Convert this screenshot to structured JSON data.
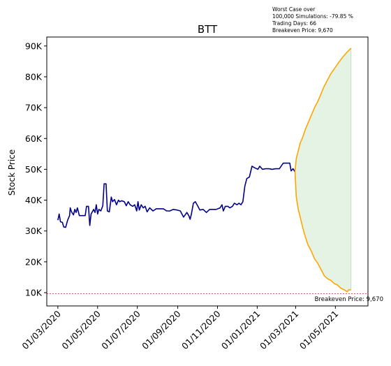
{
  "chart_data": {
    "type": "line",
    "title": "BTT",
    "xlabel": "",
    "ylabel": "Stock Price",
    "x_ticks": [
      "01/03/2020",
      "01/05/2020",
      "01/07/2020",
      "01/09/2020",
      "01/11/2020",
      "01/01/2021",
      "01/03/2021",
      "01/05/2021"
    ],
    "y_ticks": [
      "10K",
      "20K",
      "30K",
      "40K",
      "50K",
      "60K",
      "70K",
      "80K",
      "90K"
    ],
    "xlim": [
      "2020-02-13",
      "2021-06-20"
    ],
    "ylim": [
      5700,
      92900
    ],
    "grid": false,
    "annotation_lines": [
      "Worst Case over",
      "100,000 Simulations: -79.85 %",
      "Trading Days: 66",
      "Breakeven Price: 9,670"
    ],
    "breakeven": {
      "value": 9670,
      "label": "Breakeven Price: 9,670",
      "color": "#d62728"
    },
    "series": [
      {
        "color": "#00008b",
        "points": [
          [
            "2020-03-01",
            33500
          ],
          [
            "2020-03-03",
            35500
          ],
          [
            "2020-03-05",
            33000
          ],
          [
            "2020-03-08",
            32800
          ],
          [
            "2020-03-10",
            31300
          ],
          [
            "2020-03-13",
            31200
          ],
          [
            "2020-03-16",
            33500
          ],
          [
            "2020-03-19",
            35000
          ],
          [
            "2020-03-20",
            37500
          ],
          [
            "2020-03-22",
            36200
          ],
          [
            "2020-03-25",
            35200
          ],
          [
            "2020-03-27",
            37000
          ],
          [
            "2020-03-29",
            36000
          ],
          [
            "2020-03-31",
            37500
          ],
          [
            "2020-04-03",
            35000
          ],
          [
            "2020-04-08",
            35000
          ],
          [
            "2020-04-12",
            35000
          ],
          [
            "2020-04-14",
            38000
          ],
          [
            "2020-04-17",
            38000
          ],
          [
            "2020-04-19",
            31800
          ],
          [
            "2020-04-21",
            35500
          ],
          [
            "2020-04-25",
            37000
          ],
          [
            "2020-04-27",
            36000
          ],
          [
            "2020-04-29",
            38500
          ],
          [
            "2020-05-01",
            35500
          ],
          [
            "2020-05-03",
            37000
          ],
          [
            "2020-05-06",
            36500
          ],
          [
            "2020-05-09",
            38200
          ],
          [
            "2020-05-11",
            45300
          ],
          [
            "2020-05-14",
            45300
          ],
          [
            "2020-05-16",
            36500
          ],
          [
            "2020-05-19",
            36200
          ],
          [
            "2020-05-22",
            41000
          ],
          [
            "2020-05-24",
            39500
          ],
          [
            "2020-05-27",
            40200
          ],
          [
            "2020-05-30",
            38500
          ],
          [
            "2020-06-02",
            40000
          ],
          [
            "2020-06-04",
            39500
          ],
          [
            "2020-06-07",
            39800
          ],
          [
            "2020-06-11",
            39500
          ],
          [
            "2020-06-14",
            38200
          ],
          [
            "2020-06-17",
            39500
          ],
          [
            "2020-06-20",
            38500
          ],
          [
            "2020-06-24",
            38000
          ],
          [
            "2020-06-27",
            38500
          ],
          [
            "2020-06-30",
            36500
          ],
          [
            "2020-07-02",
            39500
          ],
          [
            "2020-07-04",
            36800
          ],
          [
            "2020-07-07",
            38500
          ],
          [
            "2020-07-10",
            37500
          ],
          [
            "2020-07-13",
            38000
          ],
          [
            "2020-07-16",
            36200
          ],
          [
            "2020-07-20",
            37500
          ],
          [
            "2020-07-25",
            36500
          ],
          [
            "2020-07-30",
            37200
          ],
          [
            "2020-08-05",
            37200
          ],
          [
            "2020-08-10",
            37200
          ],
          [
            "2020-08-15",
            36500
          ],
          [
            "2020-08-20",
            36500
          ],
          [
            "2020-08-25",
            37000
          ],
          [
            "2020-08-31",
            36800
          ],
          [
            "2020-09-05",
            36500
          ],
          [
            "2020-09-10",
            34500
          ],
          [
            "2020-09-15",
            36000
          ],
          [
            "2020-09-18",
            35000
          ],
          [
            "2020-09-20",
            33800
          ],
          [
            "2020-09-22",
            35500
          ],
          [
            "2020-09-25",
            39000
          ],
          [
            "2020-09-28",
            39500
          ],
          [
            "2020-10-02",
            38000
          ],
          [
            "2020-10-05",
            36800
          ],
          [
            "2020-10-10",
            37000
          ],
          [
            "2020-10-15",
            36000
          ],
          [
            "2020-10-20",
            37000
          ],
          [
            "2020-10-30",
            37000
          ],
          [
            "2020-11-05",
            37500
          ],
          [
            "2020-11-08",
            38500
          ],
          [
            "2020-11-10",
            36500
          ],
          [
            "2020-11-13",
            38000
          ],
          [
            "2020-11-17",
            38000
          ],
          [
            "2020-11-20",
            37500
          ],
          [
            "2020-11-24",
            38000
          ],
          [
            "2020-11-27",
            39000
          ],
          [
            "2020-12-01",
            38500
          ],
          [
            "2020-12-04",
            39000
          ],
          [
            "2020-12-07",
            38500
          ],
          [
            "2020-12-10",
            39500
          ],
          [
            "2020-12-13",
            44500
          ],
          [
            "2020-12-16",
            47000
          ],
          [
            "2020-12-20",
            47500
          ],
          [
            "2020-12-24",
            51000
          ],
          [
            "2020-12-28",
            50500
          ],
          [
            "2021-01-02",
            50000
          ],
          [
            "2021-01-05",
            51000
          ],
          [
            "2021-01-09",
            50000
          ],
          [
            "2021-01-14",
            50200
          ],
          [
            "2021-01-19",
            50200
          ],
          [
            "2021-01-24",
            50000
          ],
          [
            "2021-01-29",
            50200
          ],
          [
            "2021-02-04",
            50200
          ],
          [
            "2021-02-10",
            52000
          ],
          [
            "2021-02-16",
            52000
          ],
          [
            "2021-02-20",
            52000
          ],
          [
            "2021-02-22",
            49500
          ],
          [
            "2021-02-25",
            50200
          ],
          [
            "2021-02-28",
            49200
          ]
        ]
      },
      {
        "color": "#ffa500",
        "points": [
          [
            "2021-02-28",
            49200
          ],
          [
            "2021-03-02",
            53500
          ],
          [
            "2021-03-05",
            56000
          ],
          [
            "2021-03-08",
            58500
          ],
          [
            "2021-03-12",
            60500
          ],
          [
            "2021-03-16",
            63000
          ],
          [
            "2021-03-20",
            65000
          ],
          [
            "2021-03-25",
            67500
          ],
          [
            "2021-03-30",
            70000
          ],
          [
            "2021-04-04",
            72000
          ],
          [
            "2021-04-09",
            74500
          ],
          [
            "2021-04-14",
            77000
          ],
          [
            "2021-04-19",
            79000
          ],
          [
            "2021-04-24",
            81000
          ],
          [
            "2021-04-29",
            82500
          ],
          [
            "2021-05-04",
            84000
          ],
          [
            "2021-05-09",
            85500
          ],
          [
            "2021-05-14",
            86800
          ],
          [
            "2021-05-19",
            88000
          ],
          [
            "2021-05-25",
            89300
          ]
        ]
      },
      {
        "color": "#ffa500",
        "points": [
          [
            "2021-02-28",
            49200
          ],
          [
            "2021-03-02",
            41000
          ],
          [
            "2021-03-05",
            37000
          ],
          [
            "2021-03-08",
            34500
          ],
          [
            "2021-03-12",
            31000
          ],
          [
            "2021-03-16",
            28000
          ],
          [
            "2021-03-20",
            25500
          ],
          [
            "2021-03-25",
            23500
          ],
          [
            "2021-03-30",
            21000
          ],
          [
            "2021-04-04",
            19500
          ],
          [
            "2021-04-09",
            17500
          ],
          [
            "2021-04-14",
            15500
          ],
          [
            "2021-04-19",
            14500
          ],
          [
            "2021-04-24",
            14000
          ],
          [
            "2021-04-29",
            13000
          ],
          [
            "2021-05-04",
            12500
          ],
          [
            "2021-05-09",
            11500
          ],
          [
            "2021-05-14",
            11000
          ],
          [
            "2021-05-19",
            10300
          ],
          [
            "2021-05-22",
            11000
          ],
          [
            "2021-05-25",
            10800
          ]
        ]
      }
    ],
    "band": {
      "color": "#2ca02c",
      "opacity": 0.12,
      "between_series": [
        1,
        2
      ]
    }
  }
}
